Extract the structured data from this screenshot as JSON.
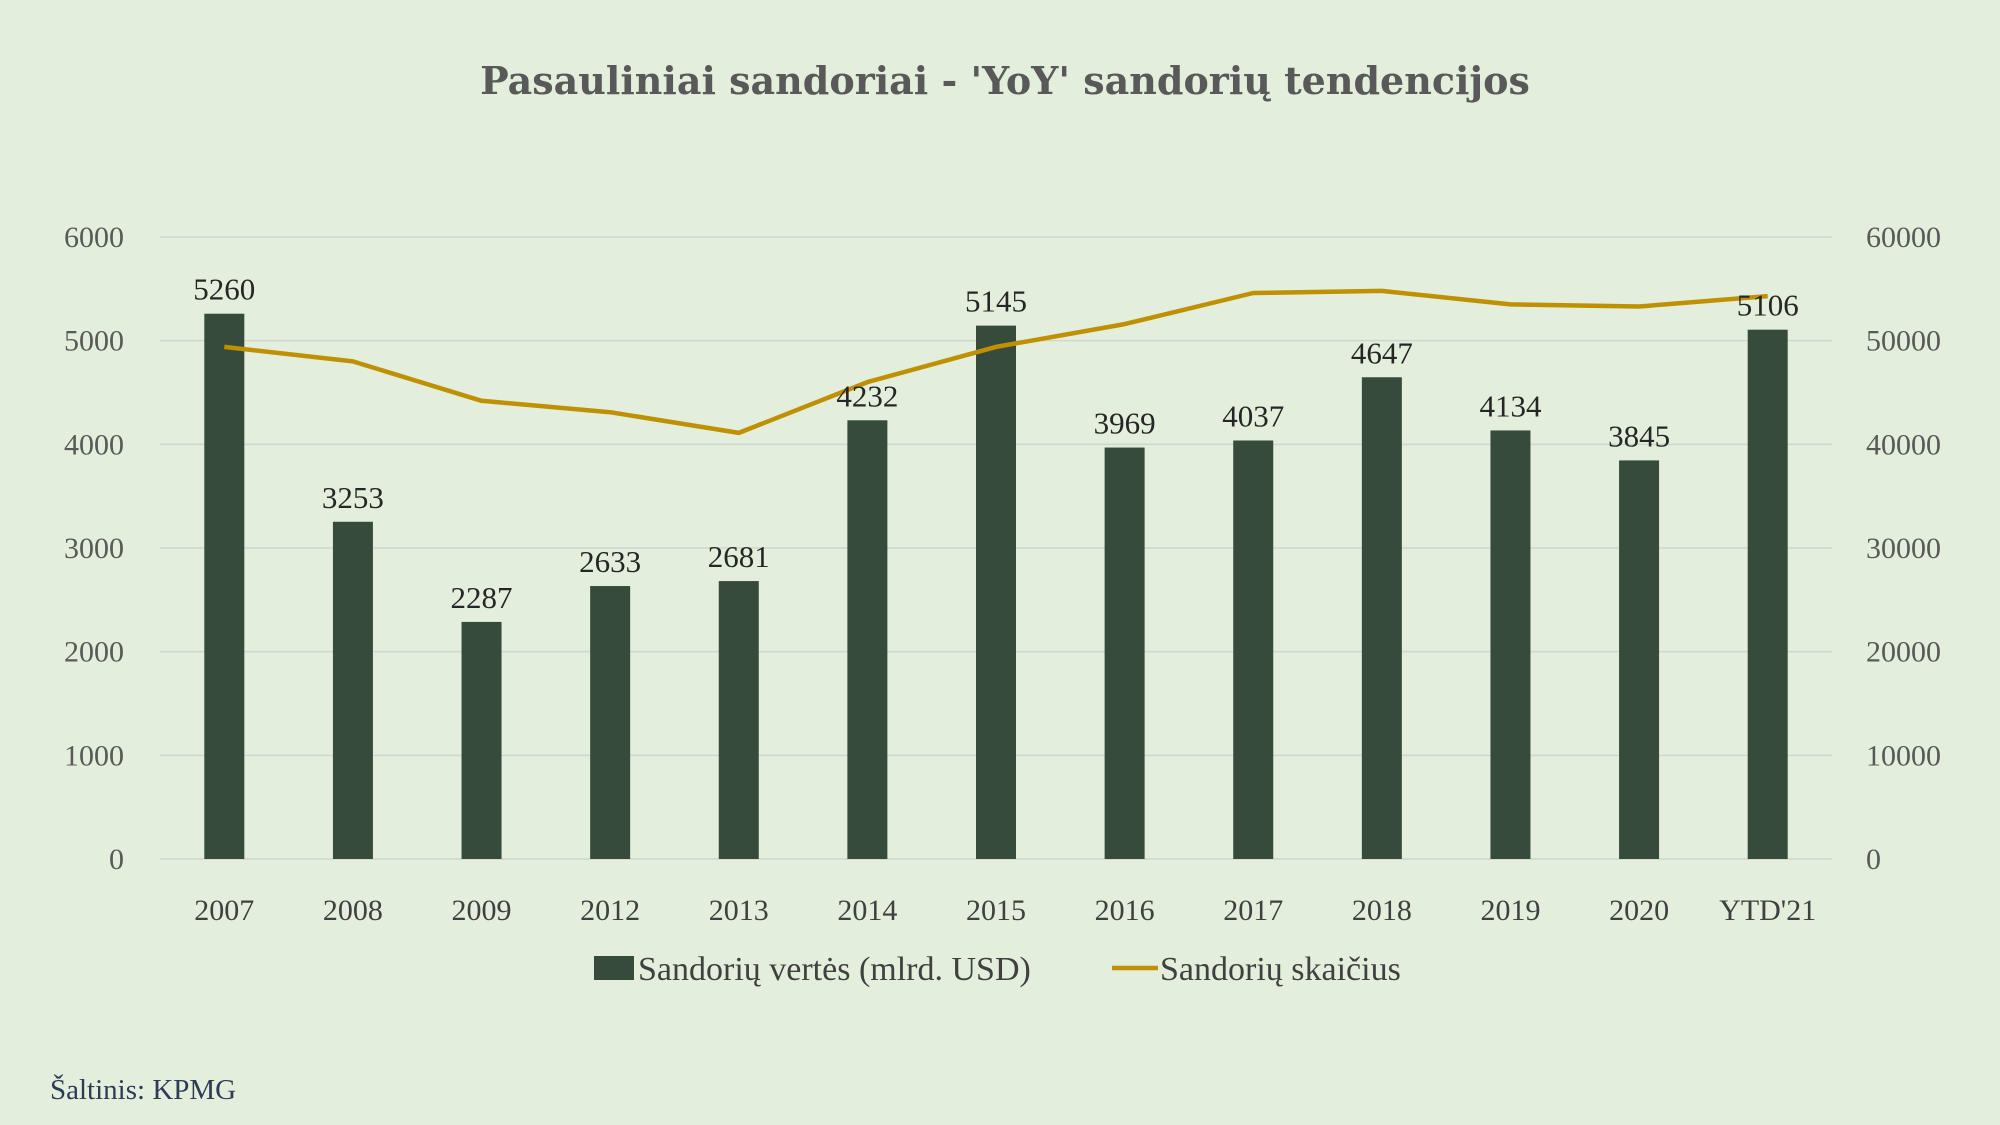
{
  "chart_data": {
    "type": "bar",
    "title": "Pasauliniai sandoriai - 'YoY' sandorių tendencijos",
    "categories": [
      "2007",
      "2008",
      "2009",
      "2012",
      "2013",
      "2014",
      "2015",
      "2016",
      "2017",
      "2018",
      "2019",
      "2020",
      "YTD'21"
    ],
    "series": [
      {
        "name": "Sandorių vertės (mlrd. USD)",
        "type": "bar",
        "axis": "left",
        "color": "#364b3c",
        "values": [
          5260,
          3253,
          2287,
          2633,
          2681,
          4232,
          5145,
          3969,
          4037,
          4647,
          4134,
          3845,
          5106
        ],
        "data_labels": [
          "5260",
          "3253",
          "2287",
          "2633",
          "2681",
          "4232",
          "5145",
          "3969",
          "4037",
          "4647",
          "4134",
          "3845",
          "5106"
        ]
      },
      {
        "name": "Sandorių skaičius",
        "type": "line",
        "axis": "right",
        "color": "#bf9000",
        "values": [
          49400,
          48000,
          44200,
          43100,
          41100,
          46000,
          49400,
          51600,
          54600,
          54800,
          53500,
          53300,
          54300
        ]
      }
    ],
    "ylim_left": [
      0,
      6000
    ],
    "ylim_right": [
      0,
      60000
    ],
    "yticks_left": [
      "0",
      "1000",
      "2000",
      "3000",
      "4000",
      "5000",
      "6000"
    ],
    "yticks_right": [
      "0",
      "10000",
      "20000",
      "30000",
      "40000",
      "50000",
      "60000"
    ],
    "grid": true,
    "legend_position": "bottom"
  },
  "source_note": "Šaltinis: KPMG"
}
